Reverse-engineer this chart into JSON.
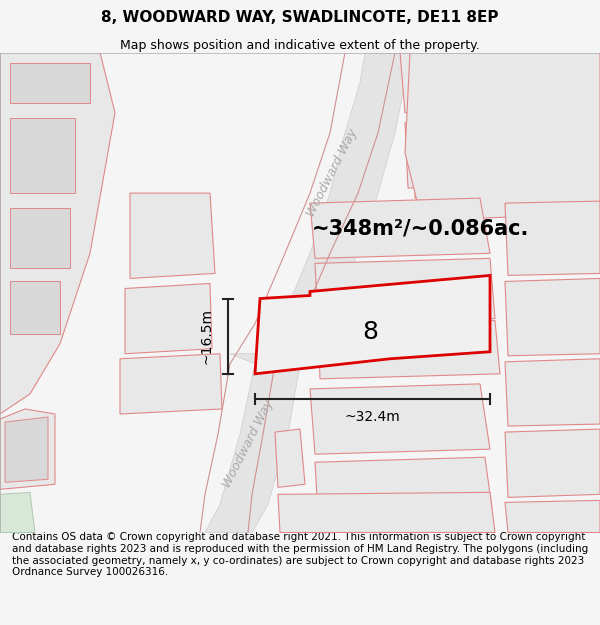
{
  "title": "8, WOODWARD WAY, SWADLINCOTE, DE11 8EP",
  "subtitle": "Map shows position and indicative extent of the property.",
  "footer": "Contains OS data © Crown copyright and database right 2021. This information is subject to Crown copyright and database rights 2023 and is reproduced with the permission of HM Land Registry. The polygons (including the associated geometry, namely x, y co-ordinates) are subject to Crown copyright and database rights 2023 Ordnance Survey 100026316.",
  "area_label": "~348m²/~0.086ac.",
  "width_label": "~32.4m",
  "height_label": "~16.5m",
  "number_label": "8",
  "bg_color": "#f5f5f5",
  "map_white": "#ffffff",
  "parcel_fill": "#e8e8e8",
  "parcel_edge": "#e08888",
  "road_fill": "#e8e8e8",
  "road_edge": "#c8c8c8",
  "plot_edge": "#dd0000",
  "dim_color": "#222222",
  "text_road": "#aaaaaa",
  "title_fontsize": 11,
  "subtitle_fontsize": 9,
  "footer_fontsize": 7.5,
  "area_fontsize": 15,
  "number_fontsize": 18,
  "dim_fontsize": 10,
  "road_fontsize": 9
}
